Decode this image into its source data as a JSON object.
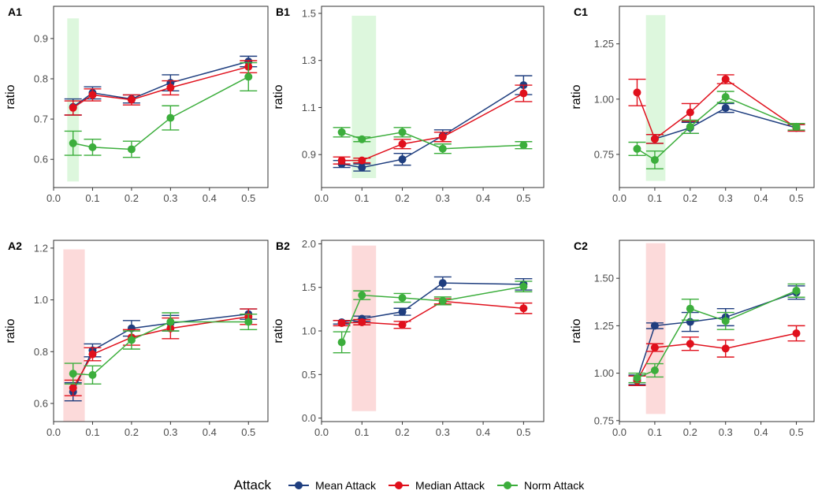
{
  "colors": {
    "mean": "#1F3E7F",
    "median": "#E0101C",
    "norm": "#3CAE3C",
    "green_band": "#DDF7DD",
    "red_band": "#FCDADA",
    "axis": "#333333"
  },
  "legend": {
    "title": "Attack",
    "items": [
      {
        "label": "Mean Attack",
        "color": "#1F3E7F"
      },
      {
        "label": "Median Attack",
        "color": "#E0101C"
      },
      {
        "label": "Norm Attack",
        "color": "#3CAE3C"
      }
    ]
  },
  "chart_data": [
    {
      "panel": "A1",
      "type": "line",
      "ylabel": "ratio",
      "xlim": [
        0,
        0.55
      ],
      "ylim": [
        0.53,
        0.98
      ],
      "xticks": [
        0.0,
        0.1,
        0.2,
        0.3,
        0.4,
        0.5
      ],
      "xtick_labels": [
        "0.0",
        "0.1",
        "0.2",
        "0.3",
        "0.4",
        "0.5"
      ],
      "yticks": [
        0.6,
        0.7,
        0.8,
        0.9
      ],
      "ytick_labels": [
        "0.6",
        "0.7",
        "0.8",
        "0.9"
      ],
      "band": {
        "x": [
          0.035,
          0.065
        ],
        "y": [
          0.545,
          0.95
        ],
        "color": "green"
      },
      "series": [
        {
          "name": "Mean Attack",
          "key": "mean",
          "x": [
            0.05,
            0.1,
            0.2,
            0.3,
            0.5
          ],
          "y": [
            0.73,
            0.765,
            0.75,
            0.79,
            0.843
          ],
          "err": [
            [
              0.71,
              0.75
            ],
            [
              0.75,
              0.78
            ],
            [
              0.74,
              0.76
            ],
            [
              0.77,
              0.81
            ],
            [
              0.83,
              0.856
            ]
          ]
        },
        {
          "name": "Median Attack",
          "key": "median",
          "x": [
            0.05,
            0.1,
            0.2,
            0.3,
            0.5
          ],
          "y": [
            0.728,
            0.76,
            0.748,
            0.778,
            0.83
          ],
          "err": [
            [
              0.71,
              0.745
            ],
            [
              0.745,
              0.775
            ],
            [
              0.735,
              0.76
            ],
            [
              0.76,
              0.795
            ],
            [
              0.815,
              0.845
            ]
          ]
        },
        {
          "name": "Norm Attack",
          "key": "norm",
          "x": [
            0.05,
            0.1,
            0.2,
            0.3,
            0.5
          ],
          "y": [
            0.64,
            0.63,
            0.625,
            0.703,
            0.805
          ],
          "err": [
            [
              0.61,
              0.67
            ],
            [
              0.61,
              0.65
            ],
            [
              0.605,
              0.645
            ],
            [
              0.673,
              0.733
            ],
            [
              0.77,
              0.84
            ]
          ]
        }
      ]
    },
    {
      "panel": "B1",
      "type": "line",
      "ylabel": "ratio",
      "xlim": [
        0,
        0.55
      ],
      "ylim": [
        0.76,
        1.53
      ],
      "xticks": [
        0.0,
        0.1,
        0.2,
        0.3,
        0.4,
        0.5
      ],
      "xtick_labels": [
        "0.0",
        "0.1",
        "0.2",
        "0.3",
        "0.4",
        "0.5"
      ],
      "yticks": [
        0.9,
        1.1,
        1.3,
        1.5
      ],
      "ytick_labels": [
        "0.9",
        "1.1",
        "1.3",
        "1.5"
      ],
      "band": {
        "x": [
          0.075,
          0.135
        ],
        "y": [
          0.8,
          1.49
        ],
        "color": "green"
      },
      "series": [
        {
          "name": "Mean Attack",
          "key": "mean",
          "x": [
            0.05,
            0.1,
            0.2,
            0.3,
            0.5
          ],
          "y": [
            0.86,
            0.845,
            0.88,
            0.98,
            1.195
          ],
          "err": [
            [
              0.845,
              0.875
            ],
            [
              0.83,
              0.86
            ],
            [
              0.855,
              0.905
            ],
            [
              0.955,
              1.005
            ],
            [
              1.155,
              1.235
            ]
          ]
        },
        {
          "name": "Median Attack",
          "key": "median",
          "x": [
            0.05,
            0.1,
            0.2,
            0.3,
            0.5
          ],
          "y": [
            0.875,
            0.875,
            0.945,
            0.975,
            1.16
          ],
          "err": [
            [
              0.86,
              0.89
            ],
            [
              0.865,
              0.885
            ],
            [
              0.925,
              0.965
            ],
            [
              0.955,
              0.995
            ],
            [
              1.125,
              1.195
            ]
          ]
        },
        {
          "name": "Norm Attack",
          "key": "norm",
          "x": [
            0.05,
            0.1,
            0.2,
            0.3,
            0.5
          ],
          "y": [
            0.995,
            0.965,
            0.995,
            0.925,
            0.94
          ],
          "err": [
            [
              0.975,
              1.015
            ],
            [
              0.955,
              0.975
            ],
            [
              0.975,
              1.015
            ],
            [
              0.905,
              0.945
            ],
            [
              0.925,
              0.955
            ]
          ]
        }
      ]
    },
    {
      "panel": "C1",
      "type": "line",
      "ylabel": "ratio",
      "xlim": [
        0,
        0.55
      ],
      "ylim": [
        0.6,
        1.42
      ],
      "xticks": [
        0.0,
        0.1,
        0.2,
        0.3,
        0.4,
        0.5
      ],
      "xtick_labels": [
        "0.0",
        "0.1",
        "0.2",
        "0.3",
        "0.4",
        "0.5"
      ],
      "yticks": [
        0.75,
        1.0,
        1.25
      ],
      "ytick_labels": [
        "0.75",
        "1.00",
        "1.25"
      ],
      "band": {
        "x": [
          0.075,
          0.13
        ],
        "y": [
          0.63,
          1.38
        ],
        "color": "green"
      },
      "series": [
        {
          "name": "Mean Attack",
          "key": "mean",
          "x": [
            0.1,
            0.2,
            0.3,
            0.5
          ],
          "y": [
            0.82,
            0.87,
            0.96,
            0.87
          ],
          "err": [
            [
              0.8,
              0.84
            ],
            [
              0.845,
              0.895
            ],
            [
              0.94,
              0.98
            ],
            [
              0.855,
              0.885
            ]
          ]
        },
        {
          "name": "Median Attack",
          "key": "median",
          "x": [
            0.05,
            0.1,
            0.2,
            0.3,
            0.5
          ],
          "y": [
            1.03,
            0.82,
            0.94,
            1.09,
            0.87
          ],
          "err": [
            [
              0.97,
              1.09
            ],
            [
              0.8,
              0.84
            ],
            [
              0.9,
              0.98
            ],
            [
              1.07,
              1.11
            ],
            [
              0.855,
              0.885
            ]
          ]
        },
        {
          "name": "Norm Attack",
          "key": "norm",
          "x": [
            0.05,
            0.1,
            0.2,
            0.3,
            0.5
          ],
          "y": [
            0.775,
            0.725,
            0.875,
            1.01,
            0.875
          ],
          "err": [
            [
              0.745,
              0.805
            ],
            [
              0.685,
              0.765
            ],
            [
              0.845,
              0.905
            ],
            [
              0.985,
              1.035
            ],
            [
              0.86,
              0.89
            ]
          ]
        }
      ]
    },
    {
      "panel": "A2",
      "type": "line",
      "ylabel": "ratio",
      "xlim": [
        0,
        0.55
      ],
      "ylim": [
        0.53,
        1.23
      ],
      "xticks": [
        0.0,
        0.1,
        0.2,
        0.3,
        0.4,
        0.5
      ],
      "xtick_labels": [
        "0.0",
        "0.1",
        "0.2",
        "0.3",
        "0.4",
        "0.5"
      ],
      "yticks": [
        0.6,
        0.8,
        1.0,
        1.2
      ],
      "ytick_labels": [
        "0.6",
        "0.8",
        "1.0",
        "1.2"
      ],
      "band": {
        "x": [
          0.025,
          0.08
        ],
        "y": [
          0.53,
          1.195
        ],
        "color": "red"
      },
      "series": [
        {
          "name": "Mean Attack",
          "key": "mean",
          "x": [
            0.05,
            0.1,
            0.2,
            0.3,
            0.5
          ],
          "y": [
            0.645,
            0.805,
            0.89,
            0.91,
            0.945
          ],
          "err": [
            [
              0.61,
              0.68
            ],
            [
              0.78,
              0.83
            ],
            [
              0.86,
              0.92
            ],
            [
              0.88,
              0.94
            ],
            [
              0.925,
              0.965
            ]
          ]
        },
        {
          "name": "Median Attack",
          "key": "median",
          "x": [
            0.05,
            0.1,
            0.2,
            0.3,
            0.5
          ],
          "y": [
            0.66,
            0.79,
            0.855,
            0.89,
            0.935
          ],
          "err": [
            [
              0.63,
              0.69
            ],
            [
              0.765,
              0.815
            ],
            [
              0.825,
              0.885
            ],
            [
              0.85,
              0.93
            ],
            [
              0.905,
              0.965
            ]
          ]
        },
        {
          "name": "Norm Attack",
          "key": "norm",
          "x": [
            0.05,
            0.1,
            0.2,
            0.3,
            0.5
          ],
          "y": [
            0.715,
            0.71,
            0.845,
            0.915,
            0.915
          ],
          "err": [
            [
              0.675,
              0.755
            ],
            [
              0.675,
              0.745
            ],
            [
              0.81,
              0.88
            ],
            [
              0.88,
              0.95
            ],
            [
              0.885,
              0.945
            ]
          ]
        }
      ]
    },
    {
      "panel": "B2",
      "type": "line",
      "ylabel": "ratio",
      "xlim": [
        0,
        0.55
      ],
      "ylim": [
        -0.04,
        2.04
      ],
      "xticks": [
        0.0,
        0.1,
        0.2,
        0.3,
        0.4,
        0.5
      ],
      "xtick_labels": [
        "0.0",
        "0.1",
        "0.2",
        "0.3",
        "0.4",
        "0.5"
      ],
      "yticks": [
        0.0,
        0.5,
        1.0,
        1.5,
        2.0
      ],
      "ytick_labels": [
        "0.0",
        "0.5",
        "1.0",
        "1.5",
        "2.0"
      ],
      "band": {
        "x": [
          0.075,
          0.135
        ],
        "y": [
          0.08,
          1.98
        ],
        "color": "red"
      },
      "series": [
        {
          "name": "Mean Attack",
          "key": "mean",
          "x": [
            0.05,
            0.1,
            0.2,
            0.3,
            0.5
          ],
          "y": [
            1.1,
            1.14,
            1.22,
            1.55,
            1.535
          ],
          "err": [
            [
              1.08,
              1.12
            ],
            [
              1.11,
              1.17
            ],
            [
              1.18,
              1.26
            ],
            [
              1.48,
              1.62
            ],
            [
              1.47,
              1.6
            ]
          ]
        },
        {
          "name": "Median Attack",
          "key": "median",
          "x": [
            0.05,
            0.1,
            0.2,
            0.3,
            0.5
          ],
          "y": [
            1.09,
            1.1,
            1.07,
            1.34,
            1.26
          ],
          "err": [
            [
              1.06,
              1.12
            ],
            [
              1.07,
              1.13
            ],
            [
              1.03,
              1.11
            ],
            [
              1.31,
              1.37
            ],
            [
              1.2,
              1.32
            ]
          ]
        },
        {
          "name": "Norm Attack",
          "key": "norm",
          "x": [
            0.05,
            0.1,
            0.2,
            0.3,
            0.5
          ],
          "y": [
            0.87,
            1.41,
            1.38,
            1.345,
            1.51
          ],
          "err": [
            [
              0.75,
              0.99
            ],
            [
              1.36,
              1.46
            ],
            [
              1.33,
              1.43
            ],
            [
              1.3,
              1.39
            ],
            [
              1.45,
              1.57
            ]
          ]
        }
      ]
    },
    {
      "panel": "C2",
      "type": "line",
      "ylabel": "ratio",
      "xlim": [
        0,
        0.55
      ],
      "ylim": [
        0.745,
        1.7
      ],
      "xticks": [
        0.0,
        0.1,
        0.2,
        0.3,
        0.4,
        0.5
      ],
      "xtick_labels": [
        "0.0",
        "0.1",
        "0.2",
        "0.3",
        "0.4",
        "0.5"
      ],
      "yticks": [
        0.75,
        1.0,
        1.25,
        1.5
      ],
      "ytick_labels": [
        "0.75",
        "1.00",
        "1.25",
        "1.50"
      ],
      "band": {
        "x": [
          0.075,
          0.13
        ],
        "y": [
          0.785,
          1.685
        ],
        "color": "red"
      },
      "series": [
        {
          "name": "Mean Attack",
          "key": "mean",
          "x": [
            0.05,
            0.1,
            0.2,
            0.3,
            0.5
          ],
          "y": [
            0.965,
            1.25,
            1.27,
            1.295,
            1.425
          ],
          "err": [
            [
              0.94,
              0.99
            ],
            [
              1.235,
              1.265
            ],
            [
              1.22,
              1.32
            ],
            [
              1.25,
              1.34
            ],
            [
              1.39,
              1.46
            ]
          ]
        },
        {
          "name": "Median Attack",
          "key": "median",
          "x": [
            0.05,
            0.1,
            0.2,
            0.3,
            0.5
          ],
          "y": [
            0.96,
            1.135,
            1.155,
            1.13,
            1.21
          ],
          "err": [
            [
              0.935,
              0.985
            ],
            [
              1.115,
              1.155
            ],
            [
              1.12,
              1.19
            ],
            [
              1.085,
              1.175
            ],
            [
              1.17,
              1.25
            ]
          ]
        },
        {
          "name": "Norm Attack",
          "key": "norm",
          "x": [
            0.05,
            0.1,
            0.2,
            0.3,
            0.5
          ],
          "y": [
            0.975,
            1.015,
            1.34,
            1.275,
            1.435
          ],
          "err": [
            [
              0.95,
              1.0
            ],
            [
              0.98,
              1.05
            ],
            [
              1.28,
              1.39
            ],
            [
              1.23,
              1.32
            ],
            [
              1.4,
              1.47
            ]
          ]
        }
      ]
    }
  ]
}
